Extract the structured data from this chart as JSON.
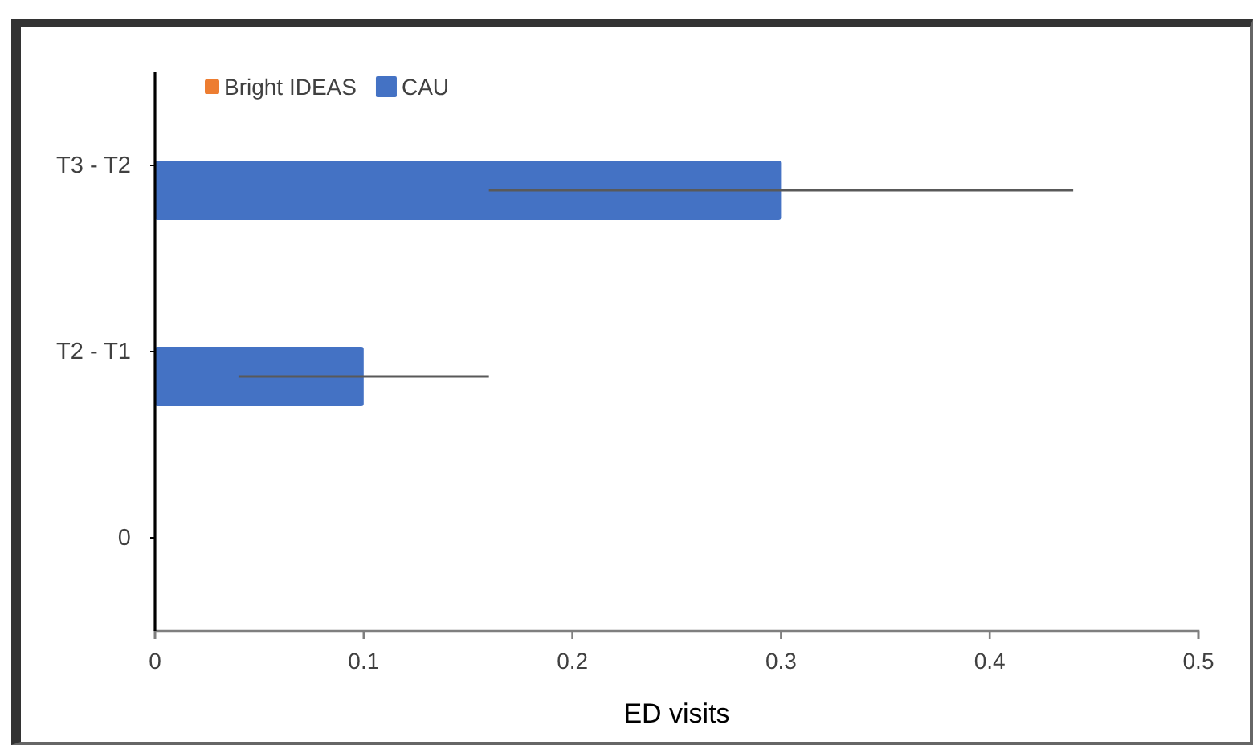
{
  "chart_data": {
    "type": "bar",
    "orientation": "horizontal",
    "categories": [
      "T3 - T2",
      "T2 - T1",
      "0"
    ],
    "series": [
      {
        "name": "Bright IDEAS",
        "color": "#ed7d31",
        "values": [
          null,
          null,
          null
        ]
      },
      {
        "name": "CAU",
        "color": "#4472c4",
        "values": [
          0.3,
          0.1,
          null
        ],
        "errors": [
          [
            0.16,
            0.44
          ],
          [
            0.04,
            0.16
          ],
          null
        ]
      }
    ],
    "xlabel": "ED visits",
    "xlim": [
      0,
      0.5
    ],
    "xticks": [
      0,
      0.1,
      0.2,
      0.3,
      0.4,
      0.5
    ],
    "legend": "top left"
  }
}
